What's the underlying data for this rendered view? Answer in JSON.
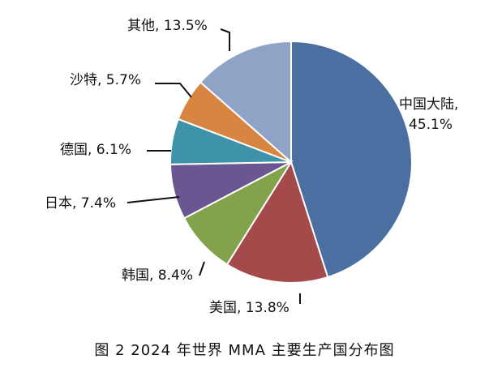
{
  "chart_data": {
    "type": "pie",
    "title": "",
    "slices": [
      {
        "name": "中国大陆",
        "value": 45.1,
        "label": "中国大陆,\n45.1%",
        "color": "#4a6fa0"
      },
      {
        "name": "美国",
        "value": 13.8,
        "label": "美国, 13.8%",
        "color": "#a54a4a"
      },
      {
        "name": "韩国",
        "value": 8.4,
        "label": "韩国, 8.4%",
        "color": "#83a24c"
      },
      {
        "name": "日本",
        "value": 7.4,
        "label": "日本, 7.4%",
        "color": "#6a5690"
      },
      {
        "name": "德国",
        "value": 6.1,
        "label": "德国, 6.1%",
        "color": "#3f93a9"
      },
      {
        "name": "沙特",
        "value": 5.7,
        "label": "沙特, 5.7%",
        "color": "#d98542"
      },
      {
        "name": "其他",
        "value": 13.5,
        "label": "其他, 13.5%",
        "color": "#8ea3c6"
      }
    ]
  },
  "caption": "图 2  2024 年世界 MMA 主要生产国分布图"
}
